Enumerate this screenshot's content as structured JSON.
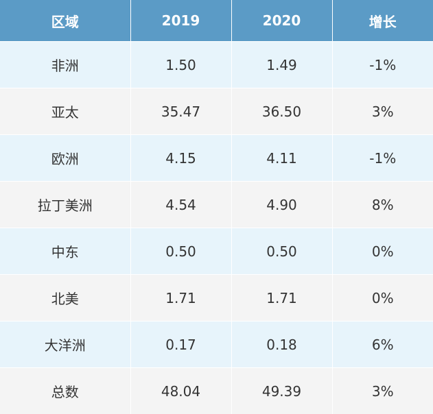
{
  "table": {
    "headers": [
      "区域",
      "2019",
      "2020",
      "增长"
    ],
    "rows": [
      [
        "非洲",
        "1.50",
        "1.49",
        "-1%"
      ],
      [
        "亚太",
        "35.47",
        "36.50",
        "3%"
      ],
      [
        "欧洲",
        "4.15",
        "4.11",
        "-1%"
      ],
      [
        "拉丁美洲",
        "4.54",
        "4.90",
        "8%"
      ],
      [
        "中东",
        "0.50",
        "0.50",
        "0%"
      ],
      [
        "北美",
        "1.71",
        "1.71",
        "0%"
      ],
      [
        "大洋洲",
        "0.17",
        "0.18",
        "6%"
      ],
      [
        "总数",
        "48.04",
        "49.39",
        "3%"
      ]
    ]
  },
  "colors": {
    "header_bg": "#5b9bc6",
    "header_text": "#ffffff",
    "row_odd_bg": "#e7f4fb",
    "row_even_bg": "#f4f4f4",
    "cell_text": "#333333"
  }
}
